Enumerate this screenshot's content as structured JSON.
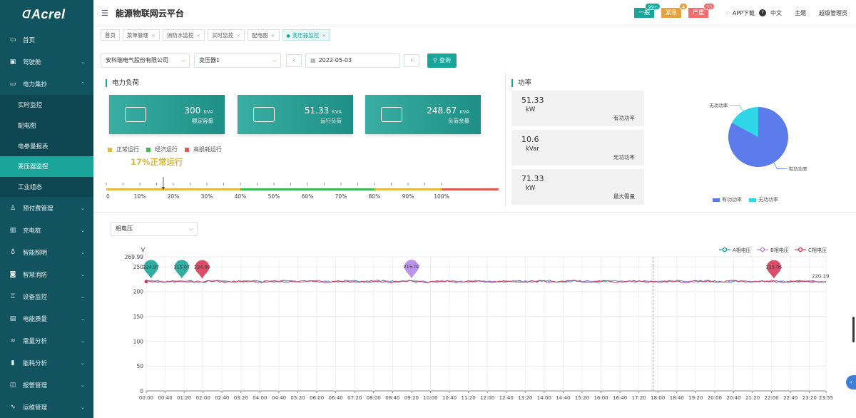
{
  "brand": {
    "logo": "Acrel"
  },
  "sidebar": {
    "items": [
      {
        "label": "首页",
        "icon": "monitor-icon",
        "glyph": "▭",
        "chev": false
      },
      {
        "label": "驾驶舱",
        "icon": "dashboard-icon",
        "glyph": "▣",
        "chev": true
      },
      {
        "label": "电力集抄",
        "icon": "meter-icon",
        "glyph": "▭",
        "chev": true,
        "open": true
      },
      {
        "label": "实时监控",
        "sub": true
      },
      {
        "label": "配电图",
        "sub": true
      },
      {
        "label": "电参量报表",
        "sub": true
      },
      {
        "label": "变压器监控",
        "sub": true,
        "active": true
      },
      {
        "label": "工业组态",
        "sub": true
      },
      {
        "label": "预付费管理",
        "icon": "user-icon",
        "glyph": "♙",
        "chev": true
      },
      {
        "label": "充电桩",
        "icon": "charger-icon",
        "glyph": "▥",
        "chev": true
      },
      {
        "label": "智能照明",
        "icon": "bulb-icon",
        "glyph": "♁",
        "chev": true
      },
      {
        "label": "智慧消防",
        "icon": "fire-icon",
        "glyph": "◙",
        "chev": true
      },
      {
        "label": "设备监控",
        "icon": "device-icon",
        "glyph": "♖",
        "chev": true
      },
      {
        "label": "电能质量",
        "icon": "quality-icon",
        "glyph": "▤",
        "chev": true
      },
      {
        "label": "需量分析",
        "icon": "demand-icon",
        "glyph": "≈",
        "chev": true
      },
      {
        "label": "能耗分析",
        "icon": "bar-chart-icon",
        "glyph": "▮",
        "chev": true
      },
      {
        "label": "报警管理",
        "icon": "alarm-icon",
        "glyph": "◫",
        "chev": true
      },
      {
        "label": "运维管理",
        "icon": "ops-icon",
        "glyph": "∿",
        "chev": true
      }
    ]
  },
  "header": {
    "title": "能源物联网云平台",
    "alarms": [
      {
        "label": "一般",
        "count": "99+",
        "color": "#1aa59a",
        "count_color": "#1aa59a"
      },
      {
        "label": "紧急",
        "count": "4",
        "color": "#e6a23c",
        "count_color": "#e6a23c"
      },
      {
        "label": "严重",
        "count": "73",
        "color": "#f56c6c",
        "count_color": "#f56c6c"
      }
    ],
    "app_download": "APP下载",
    "language": "中文",
    "theme": "主题",
    "user": "超级管理员"
  },
  "tabs": [
    {
      "label": "首页",
      "closable": false
    },
    {
      "label": "菜单管理",
      "closable": true
    },
    {
      "label": "消防水监控",
      "closable": true
    },
    {
      "label": "实时监控",
      "closable": true
    },
    {
      "label": "配电图",
      "closable": true
    },
    {
      "label": "变压器监控",
      "closable": true,
      "active": true
    }
  ],
  "filters": {
    "company": "安科瑞电气股份有限公司",
    "transformer": "变压器1",
    "date": "2022-05-03",
    "query_label": "查询"
  },
  "load": {
    "title": "电力负荷",
    "cards": [
      {
        "value": "300",
        "unit": "KVA",
        "label": "额定容量"
      },
      {
        "value": "51.33",
        "unit": "KVA",
        "label": "运行负荷"
      },
      {
        "value": "248.67",
        "unit": "KVA",
        "label": "负荷余量"
      }
    ],
    "legend": [
      {
        "label": "正常运行",
        "color": "#e6b93c"
      },
      {
        "label": "经济运行",
        "color": "#3cba54"
      },
      {
        "label": "高损耗运行",
        "color": "#e05a4f"
      }
    ],
    "status_text": "17%正常运行",
    "status_percent": 17,
    "scale_labels": [
      "0",
      "10%",
      "20%",
      "30%",
      "40%",
      "50%",
      "60%",
      "70%",
      "80%",
      "90%",
      "100%"
    ],
    "zones": [
      {
        "from": 0,
        "to": 40,
        "color": "#e6b93c"
      },
      {
        "from": 40,
        "to": 80,
        "color": "#3cba54"
      },
      {
        "from": 80,
        "to": 100,
        "color": "#e6b93c"
      },
      {
        "from": 100,
        "to": 117,
        "color": "#e05a4f"
      }
    ]
  },
  "power": {
    "title": "功率",
    "boxes": [
      {
        "value": "51.33",
        "unit": "kW",
        "label": "有功功率"
      },
      {
        "value": "10.6",
        "unit": "kVar",
        "label": "无功功率"
      },
      {
        "value": "71.33",
        "unit": "kW",
        "label": "最大需量"
      }
    ],
    "pie": {
      "slices": [
        {
          "name": "有功功率",
          "value": 51.33,
          "color": "#5b7bea"
        },
        {
          "name": "无功功率",
          "value": 10.6,
          "color": "#2fd6e8"
        }
      ],
      "legend": [
        "有功功率",
        "无功功率"
      ]
    }
  },
  "voltage_select": "相电压",
  "chart_data": {
    "type": "line",
    "ylabel": "V",
    "ylim": [
      0,
      269.99
    ],
    "yticks": [
      0,
      50,
      100,
      150,
      200,
      250
    ],
    "ymax_label": "269.99",
    "x": [
      "00:00",
      "00:40",
      "01:20",
      "02:00",
      "02:40",
      "03:20",
      "04:00",
      "04:40",
      "05:20",
      "06:00",
      "06:40",
      "07:20",
      "08:00",
      "08:40",
      "09:20",
      "10:00",
      "10:40",
      "11:20",
      "12:00",
      "12:40",
      "13:20",
      "14:00",
      "14:40",
      "15:20",
      "16:00",
      "16:40",
      "17:20",
      "18:00",
      "18:40",
      "19:20",
      "20:00",
      "20:40",
      "21:20",
      "22:00",
      "22:40",
      "23:20",
      "23:55"
    ],
    "series": [
      {
        "name": "A相电压",
        "color": "#1aa59a",
        "base": 220.5
      },
      {
        "name": "B相电压",
        "color": "#b589e8",
        "base": 220.8
      },
      {
        "name": "C相电压",
        "color": "#d93a5a",
        "base": 220.2
      }
    ],
    "markers": [
      {
        "series": 0,
        "time": "00:10",
        "label": "224.97"
      },
      {
        "series": 0,
        "time": "01:15",
        "label": "215.07"
      },
      {
        "series": 2,
        "time": "01:58",
        "label": "224.99"
      },
      {
        "series": 1,
        "time": "09:20",
        "label": "215.02"
      },
      {
        "series": 2,
        "time": "22:05",
        "label": "215.05"
      }
    ],
    "end_label": "220.19",
    "legend_position": "top-right"
  }
}
